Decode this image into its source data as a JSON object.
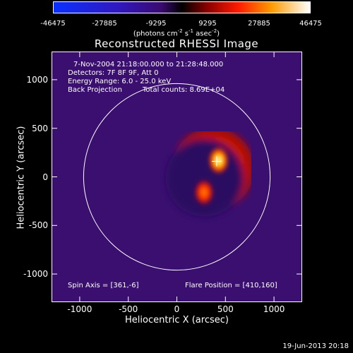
{
  "colorbar": {
    "ticks": [
      "-46475",
      "-27885",
      "-9295",
      "9295",
      "27885",
      "46475"
    ],
    "units_prefix": "(photons cm",
    "units_sup1": "-2",
    "units_mid": " s",
    "units_sup2": "-1",
    "units_mid2": " asec",
    "units_sup3": "-2",
    "units_suffix": ")"
  },
  "chart_data": {
    "type": "heatmap",
    "title": "Reconstructed RHESSI Image",
    "xlabel": "Heliocentric X (arcsec)",
    "ylabel": "Heliocentric Y (arcsec)",
    "xlim": [
      -1290,
      1290
    ],
    "ylim": [
      -1290,
      1290
    ],
    "x_ticks": [
      "-1000",
      "-500",
      "0",
      "500",
      "1000"
    ],
    "y_ticks": [
      "1000",
      "500",
      "0",
      "-500",
      "-1000"
    ],
    "colorbar_range": [
      -46475,
      46475
    ],
    "sources": [
      {
        "x": 430,
        "y": 170,
        "intensity": 46475
      },
      {
        "x": 280,
        "y": -160,
        "intensity": 24000
      }
    ],
    "flare_position": [
      410,
      160
    ],
    "solar_limb_radius_arcsec": 960,
    "annotations": {
      "time": "7-Nov-2004 21:18:00.000 to 21:28:48.000",
      "detectors": "Detectors: 7F 8F 9F, Att 0",
      "energy": "Energy Range: 6.0 - 25.0 keV",
      "method": "Back Projection",
      "counts": "Total counts: 8.69E+04",
      "spin_axis": "Spin Axis = [361,-6]",
      "flare": "Flare Position = [410,160]"
    }
  },
  "footer": "19-Jun-2013 20:18"
}
